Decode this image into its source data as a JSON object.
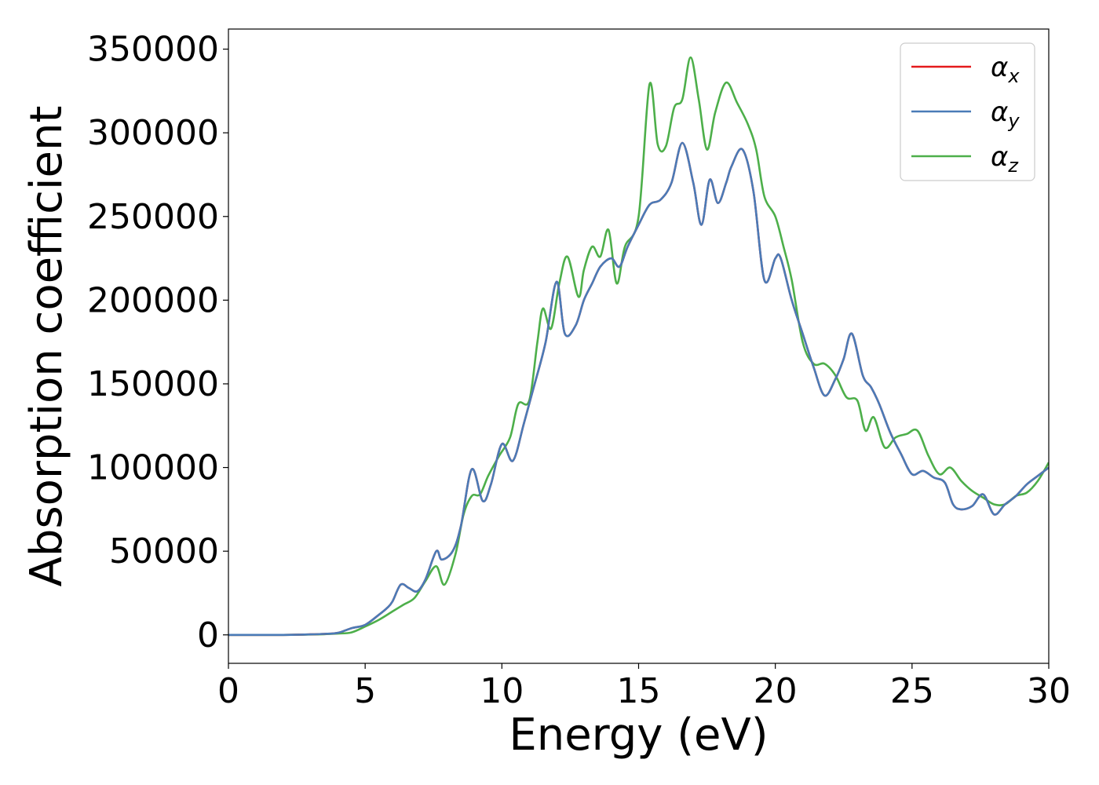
{
  "chart_data": {
    "type": "line",
    "title": "",
    "xlabel": "Energy (eV)",
    "ylabel": "Absorption coefficient",
    "xlim": [
      0,
      30
    ],
    "ylim": [
      -17000,
      362000
    ],
    "xticks": [
      0,
      5,
      10,
      15,
      20,
      25,
      30
    ],
    "yticks": [
      0,
      50000,
      100000,
      150000,
      200000,
      250000,
      300000,
      350000
    ],
    "grid": false,
    "legend_position": "top-right",
    "series": [
      {
        "name": "α_x",
        "label_base": "α",
        "label_sub": "x",
        "color": "#e41a1c",
        "x": [
          0,
          2,
          3,
          3.5,
          4,
          4.5,
          5,
          5.5,
          5.8,
          6,
          6.3,
          6.6,
          6.9,
          7.2,
          7.6,
          7.8,
          8.2,
          8.5,
          8.9,
          9.3,
          9.6,
          10,
          10.4,
          10.8,
          11.2,
          11.6,
          12,
          12.3,
          12.7,
          13,
          13.3,
          13.6,
          14,
          14.3,
          14.6,
          15,
          15.4,
          15.8,
          16.2,
          16.6,
          17,
          17.3,
          17.6,
          17.9,
          18.2,
          18.4,
          18.8,
          19.2,
          19.6,
          20,
          20.2,
          20.6,
          21,
          21.4,
          21.8,
          22.2,
          22.5,
          22.8,
          23.2,
          23.5,
          23.8,
          24.2,
          24.6,
          25,
          25.4,
          25.8,
          26.2,
          26.5,
          26.8,
          27.2,
          27.6,
          28,
          28.4,
          28.8,
          29.2,
          29.6,
          30
        ],
        "y": [
          0,
          0,
          300,
          600,
          1200,
          4000,
          6000,
          12000,
          16000,
          20000,
          30000,
          28000,
          26000,
          33000,
          50000,
          45000,
          50000,
          65000,
          99000,
          80000,
          90000,
          114000,
          104000,
          126000,
          150000,
          175000,
          211000,
          180000,
          185000,
          200000,
          210000,
          220000,
          225000,
          220000,
          232000,
          245000,
          257000,
          260000,
          270000,
          294000,
          270000,
          245000,
          272000,
          258000,
          270000,
          280000,
          290000,
          265000,
          212000,
          225000,
          225000,
          200000,
          180000,
          160000,
          143000,
          153000,
          165000,
          180000,
          155000,
          148000,
          138000,
          121000,
          108000,
          96000,
          98000,
          94000,
          91000,
          78000,
          75000,
          77000,
          84000,
          72000,
          78000,
          83000,
          90000,
          95000,
          100000
        ]
      },
      {
        "name": "α_y",
        "label_base": "α",
        "label_sub": "y",
        "color": "#4a7bb7",
        "x": [
          0,
          2,
          3,
          3.5,
          4,
          4.5,
          5,
          5.5,
          5.8,
          6,
          6.3,
          6.6,
          6.9,
          7.2,
          7.6,
          7.8,
          8.2,
          8.5,
          8.9,
          9.3,
          9.6,
          10,
          10.4,
          10.8,
          11.2,
          11.6,
          12,
          12.3,
          12.7,
          13,
          13.3,
          13.6,
          14,
          14.3,
          14.6,
          15,
          15.4,
          15.8,
          16.2,
          16.6,
          17,
          17.3,
          17.6,
          17.9,
          18.2,
          18.4,
          18.8,
          19.2,
          19.6,
          20,
          20.2,
          20.6,
          21,
          21.4,
          21.8,
          22.2,
          22.5,
          22.8,
          23.2,
          23.5,
          23.8,
          24.2,
          24.6,
          25,
          25.4,
          25.8,
          26.2,
          26.5,
          26.8,
          27.2,
          27.6,
          28,
          28.4,
          28.8,
          29.2,
          29.6,
          30
        ],
        "y": [
          0,
          0,
          300,
          600,
          1200,
          4000,
          6000,
          12000,
          16000,
          20000,
          30000,
          28000,
          26000,
          33000,
          50000,
          45000,
          50000,
          65000,
          99000,
          80000,
          90000,
          114000,
          104000,
          126000,
          150000,
          175000,
          211000,
          180000,
          185000,
          200000,
          210000,
          220000,
          225000,
          220000,
          232000,
          245000,
          257000,
          260000,
          270000,
          294000,
          270000,
          245000,
          272000,
          258000,
          270000,
          280000,
          290000,
          265000,
          212000,
          225000,
          225000,
          200000,
          180000,
          160000,
          143000,
          153000,
          165000,
          180000,
          155000,
          148000,
          138000,
          121000,
          108000,
          96000,
          98000,
          94000,
          91000,
          78000,
          75000,
          77000,
          84000,
          72000,
          78000,
          83000,
          90000,
          95000,
          100000
        ]
      },
      {
        "name": "α_z",
        "label_base": "α",
        "label_sub": "z",
        "color": "#4daf4a",
        "x": [
          0,
          2,
          3,
          3.5,
          4,
          4.5,
          5,
          5.5,
          6,
          6.4,
          6.8,
          7.2,
          7.6,
          7.9,
          8.3,
          8.6,
          8.9,
          9.2,
          9.5,
          9.9,
          10.3,
          10.6,
          11,
          11.3,
          11.5,
          11.8,
          12.1,
          12.4,
          12.8,
          13,
          13.3,
          13.6,
          13.9,
          14.2,
          14.5,
          15,
          15.4,
          15.7,
          16,
          16.3,
          16.6,
          16.9,
          17.2,
          17.5,
          17.8,
          18.2,
          18.6,
          19,
          19.3,
          19.6,
          20,
          20.3,
          20.6,
          21,
          21.4,
          21.8,
          22.2,
          22.6,
          23,
          23.3,
          23.6,
          24,
          24.4,
          24.8,
          25.2,
          25.6,
          26,
          26.4,
          26.8,
          27.2,
          27.6,
          28,
          28.4,
          28.8,
          29.2,
          29.6,
          30
        ],
        "y": [
          0,
          0,
          200,
          400,
          800,
          1500,
          5000,
          9000,
          14000,
          18000,
          22000,
          32000,
          41000,
          30000,
          48000,
          72000,
          83000,
          84000,
          95000,
          107000,
          118000,
          138000,
          140000,
          175000,
          195000,
          183000,
          210000,
          226000,
          202000,
          218000,
          232000,
          226000,
          242000,
          210000,
          232000,
          250000,
          329000,
          293000,
          292000,
          315000,
          320000,
          345000,
          320000,
          290000,
          312000,
          330000,
          318000,
          305000,
          290000,
          262000,
          250000,
          232000,
          212000,
          175000,
          162000,
          162000,
          155000,
          142000,
          140000,
          122000,
          130000,
          112000,
          118000,
          120000,
          122000,
          107000,
          96000,
          100000,
          92000,
          86000,
          82000,
          78000,
          78000,
          83000,
          85000,
          92000,
          103000
        ]
      }
    ]
  }
}
